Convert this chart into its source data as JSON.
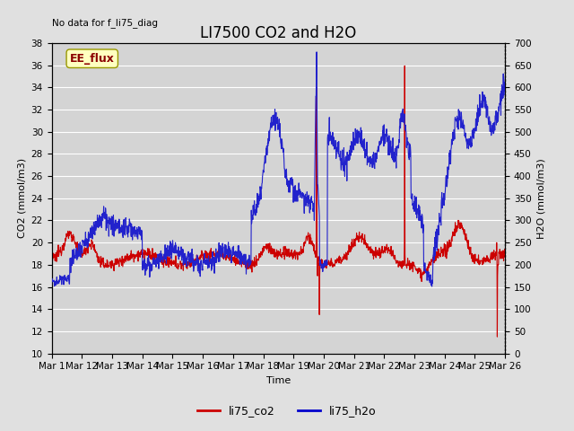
{
  "title": "LI7500 CO2 and H2O",
  "top_left_text": "No data for f_li75_diag",
  "annotation_box": "EE_flux",
  "xlabel": "Time",
  "ylabel_left": "CO2 (mmol/m3)",
  "ylabel_right": "H2O (mmol/m3)",
  "ylim_left": [
    10,
    38
  ],
  "ylim_right": [
    0,
    700
  ],
  "legend_labels": [
    "li75_co2",
    "li75_h2o"
  ],
  "legend_colors": [
    "#cc0000",
    "#0000cc"
  ],
  "background_color": "#e0e0e0",
  "plot_bg_color": "#d4d4d4",
  "grid_color": "#ffffff",
  "co2_color": "#cc0000",
  "h2o_color": "#2222cc",
  "title_fontsize": 12,
  "label_fontsize": 8,
  "tick_fontsize": 7.5
}
